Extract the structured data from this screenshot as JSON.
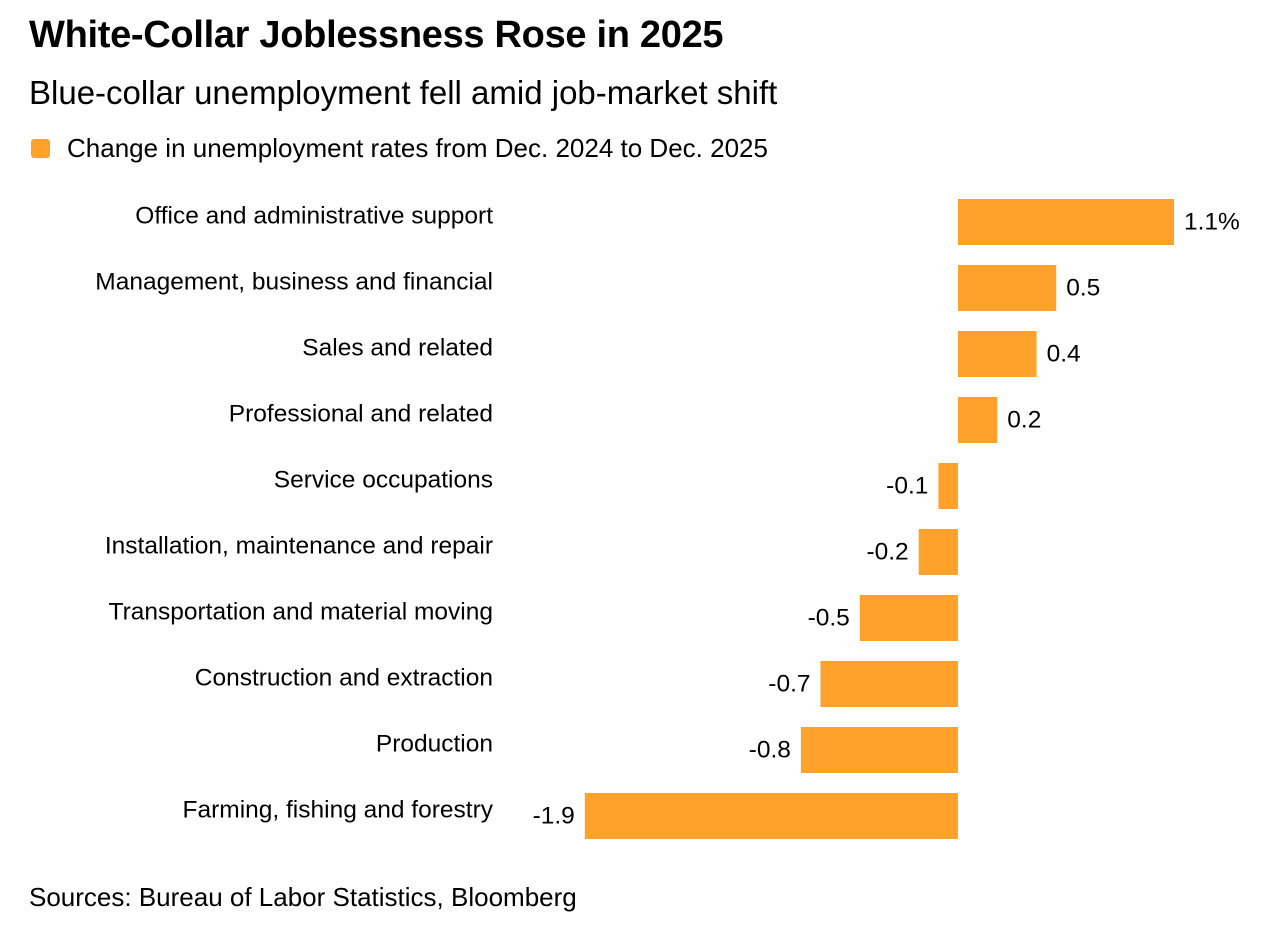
{
  "header": {
    "title": "White-Collar Joblessness Rose in 2025",
    "subtitle": "Blue-collar unemployment fell amid job-market shift"
  },
  "legend": {
    "label": "Change in unemployment rates from Dec. 2024 to Dec. 2025",
    "color": "#FFA22B"
  },
  "footer": {
    "source": "Sources: Bureau of Labor Statistics, Bloomberg"
  },
  "chart_data": {
    "type": "bar",
    "orientation": "horizontal",
    "categories": [
      "Office and administrative support",
      "Management, business and financial",
      "Sales and related",
      "Professional and related",
      "Service occupations",
      "Installation, maintenance and repair",
      "Transportation and material moving",
      "Construction and extraction",
      "Production",
      "Farming, fishing and forestry"
    ],
    "series": [
      {
        "name": "Change in unemployment rates from Dec. 2024 to Dec. 2025",
        "values": [
          1.1,
          0.5,
          0.4,
          0.2,
          -0.1,
          -0.2,
          -0.5,
          -0.7,
          -0.8,
          -1.9
        ],
        "value_labels": [
          "1.1%",
          "0.5",
          "0.4",
          "0.2",
          "-0.1",
          "-0.2",
          "-0.5",
          "-0.7",
          "-0.8",
          "-1.9"
        ]
      }
    ],
    "xlim": [
      -1.9,
      1.1
    ],
    "grid": false,
    "legend_position": "top-left",
    "bar_color": "#FFA22B"
  }
}
